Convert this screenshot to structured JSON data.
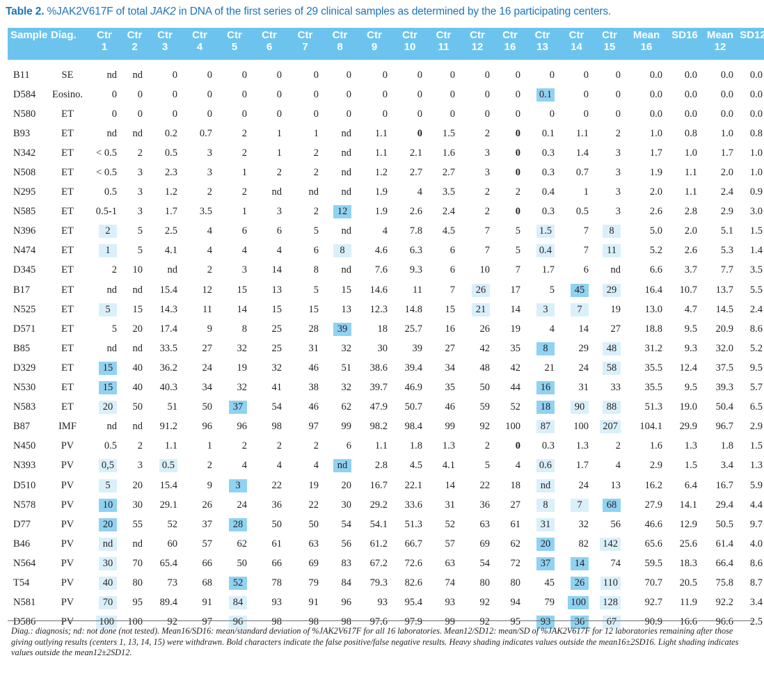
{
  "caption": {
    "label": "Table 2.",
    "text_before": " %JAK2V617F of total ",
    "gene": "JAK2",
    "text_after": " in DNA of the first series of 29 clinical samples as determined by the 16 participating centers."
  },
  "table": {
    "headers": [
      [
        "Sample"
      ],
      [
        "Diag."
      ],
      [
        "Ctr",
        "1"
      ],
      [
        "Ctr",
        "2"
      ],
      [
        "Ctr",
        "3"
      ],
      [
        "Ctr",
        "4"
      ],
      [
        "Ctr",
        "5"
      ],
      [
        "Ctr",
        "6"
      ],
      [
        "Ctr",
        "7"
      ],
      [
        "Ctr",
        "8"
      ],
      [
        "Ctr",
        "9"
      ],
      [
        "Ctr",
        "10"
      ],
      [
        "Ctr",
        "11"
      ],
      [
        "Ctr",
        "12"
      ],
      [
        "Ctr",
        "16"
      ],
      [
        "Ctr",
        "13"
      ],
      [
        "Ctr",
        "14"
      ],
      [
        "Ctr",
        "15"
      ],
      [
        "Mean",
        "16"
      ],
      [
        "SD16"
      ],
      [
        "Mean",
        "12"
      ],
      [
        "SD12"
      ]
    ],
    "rows": [
      [
        "B11",
        "SE",
        "nd",
        "nd",
        "0",
        "0",
        "0",
        "0",
        "0",
        "0",
        "0",
        "0",
        "0",
        "0",
        "0",
        "0",
        "0",
        "0",
        "0.0",
        "0.0",
        "0.0",
        "0.0"
      ],
      [
        "D584",
        "Eosino.",
        "0",
        "0",
        "0",
        "0",
        "0",
        "0",
        "0",
        "0",
        "0",
        "0",
        "0",
        "0",
        "0",
        "0.1",
        "0",
        "0",
        "0.0",
        "0.0",
        "0.0",
        "0.0"
      ],
      [
        "N580",
        "ET",
        "0",
        "0",
        "0",
        "0",
        "0",
        "0",
        "0",
        "0",
        "0",
        "0",
        "0",
        "0",
        "0",
        "0",
        "0",
        "0",
        "0.0",
        "0.0",
        "0.0",
        "0.0"
      ],
      [
        "B93",
        "ET",
        "nd",
        "nd",
        "0.2",
        "0.7",
        "2",
        "1",
        "1",
        "nd",
        "1.1",
        "0",
        "1.5",
        "2",
        "0",
        "0.1",
        "1.1",
        "2",
        "1.0",
        "0.8",
        "1.0",
        "0.8"
      ],
      [
        "N342",
        "ET",
        "< 0.5",
        "2",
        "0.5",
        "3",
        "2",
        "1",
        "2",
        "nd",
        "1.1",
        "2.1",
        "1.6",
        "3",
        "0",
        "0.3",
        "1.4",
        "3",
        "1.7",
        "1.0",
        "1.7",
        "1.0"
      ],
      [
        "N508",
        "ET",
        "< 0.5",
        "3",
        "2.3",
        "3",
        "1",
        "2",
        "2",
        "nd",
        "1.2",
        "2.7",
        "2.7",
        "3",
        "0",
        "0.3",
        "0.7",
        "3",
        "1.9",
        "1.1",
        "2.0",
        "1.0"
      ],
      [
        "N295",
        "ET",
        "0.5",
        "3",
        "1.2",
        "2",
        "2",
        "nd",
        "nd",
        "nd",
        "1.9",
        "4",
        "3.5",
        "2",
        "2",
        "0.4",
        "1",
        "3",
        "2.0",
        "1.1",
        "2.4",
        "0.9"
      ],
      [
        "N585",
        "ET",
        "0.5-1",
        "3",
        "1.7",
        "3.5",
        "1",
        "3",
        "2",
        "12",
        "1.9",
        "2.6",
        "2.4",
        "2",
        "0",
        "0.3",
        "0.5",
        "3",
        "2.6",
        "2.8",
        "2.9",
        "3.0"
      ],
      [
        "N396",
        "ET",
        "2",
        "5",
        "2.5",
        "4",
        "6",
        "6",
        "5",
        "nd",
        "4",
        "7.8",
        "4.5",
        "7",
        "5",
        "1.5",
        "7",
        "8",
        "5.0",
        "2.0",
        "5.1",
        "1.5"
      ],
      [
        "N474",
        "ET",
        "1",
        "5",
        "4.1",
        "4",
        "4",
        "4",
        "6",
        "8",
        "4.6",
        "6.3",
        "6",
        "7",
        "5",
        "0.4",
        "7",
        "11",
        "5.2",
        "2.6",
        "5.3",
        "1.4"
      ],
      [
        "D345",
        "ET",
        "2",
        "10",
        "nd",
        "2",
        "3",
        "14",
        "8",
        "nd",
        "7.6",
        "9.3",
        "6",
        "10",
        "7",
        "1.7",
        "6",
        "nd",
        "6.6",
        "3.7",
        "7.7",
        "3.5"
      ],
      [
        "B17",
        "ET",
        "nd",
        "nd",
        "15.4",
        "12",
        "15",
        "13",
        "5",
        "15",
        "14.6",
        "11",
        "7",
        "26",
        "17",
        "5",
        "45",
        "29",
        "16.4",
        "10.7",
        "13.7",
        "5.5"
      ],
      [
        "N525",
        "ET",
        "5",
        "15",
        "14.3",
        "11",
        "14",
        "15",
        "15",
        "13",
        "12.3",
        "14.8",
        "15",
        "21",
        "14",
        "3",
        "7",
        "19",
        "13.0",
        "4.7",
        "14.5",
        "2.4"
      ],
      [
        "D571",
        "ET",
        "5",
        "20",
        "17.4",
        "9",
        "8",
        "25",
        "28",
        "39",
        "18",
        "25.7",
        "16",
        "26",
        "19",
        "4",
        "14",
        "27",
        "18.8",
        "9.5",
        "20.9",
        "8.6"
      ],
      [
        "B85",
        "ET",
        "nd",
        "nd",
        "33.5",
        "27",
        "32",
        "25",
        "31",
        "32",
        "30",
        "39",
        "27",
        "42",
        "35",
        "8",
        "29",
        "48",
        "31.2",
        "9.3",
        "32.0",
        "5.2"
      ],
      [
        "D329",
        "ET",
        "15",
        "40",
        "36.2",
        "24",
        "19",
        "32",
        "46",
        "51",
        "38.6",
        "39.4",
        "34",
        "48",
        "42",
        "21",
        "24",
        "58",
        "35.5",
        "12.4",
        "37.5",
        "9.5"
      ],
      [
        "N530",
        "ET",
        "15",
        "40",
        "40.3",
        "34",
        "32",
        "41",
        "38",
        "32",
        "39.7",
        "46.9",
        "35",
        "50",
        "44",
        "16",
        "31",
        "33",
        "35.5",
        "9.5",
        "39.3",
        "5.7"
      ],
      [
        "N583",
        "ET",
        "20",
        "50",
        "51",
        "50",
        "37",
        "54",
        "46",
        "62",
        "47.9",
        "50.7",
        "46",
        "59",
        "52",
        "18",
        "90",
        "88",
        "51.3",
        "19.0",
        "50.4",
        "6.5"
      ],
      [
        "B87",
        "IMF",
        "nd",
        "nd",
        "91.2",
        "96",
        "96",
        "98",
        "97",
        "99",
        "98.2",
        "98.4",
        "99",
        "92",
        "100",
        "87",
        "100",
        "207",
        "104.1",
        "29.9",
        "96.7",
        "2.9"
      ],
      [
        "N450",
        "PV",
        "0.5",
        "2",
        "1.1",
        "1",
        "2",
        "2",
        "2",
        "6",
        "1.1",
        "1.8",
        "1.3",
        "2",
        "0",
        "0.3",
        "1.3",
        "2",
        "1.6",
        "1.3",
        "1.8",
        "1.5"
      ],
      [
        "N393",
        "PV",
        "0,5",
        "3",
        "0.5",
        "2",
        "4",
        "4",
        "4",
        "nd",
        "2.8",
        "4.5",
        "4.1",
        "5",
        "4",
        "0.6",
        "1.7",
        "4",
        "2.9",
        "1.5",
        "3.4",
        "1.3"
      ],
      [
        "D510",
        "PV",
        "5",
        "20",
        "15.4",
        "9",
        "3",
        "22",
        "19",
        "20",
        "16.7",
        "22.1",
        "14",
        "22",
        "18",
        "nd",
        "24",
        "13",
        "16.2",
        "6.4",
        "16.7",
        "5.9"
      ],
      [
        "N578",
        "PV",
        "10",
        "30",
        "29.1",
        "26",
        "24",
        "36",
        "22",
        "30",
        "29.2",
        "33.6",
        "31",
        "36",
        "27",
        "8",
        "7",
        "68",
        "27.9",
        "14.1",
        "29.4",
        "4.4"
      ],
      [
        "D77",
        "PV",
        "20",
        "55",
        "52",
        "37",
        "28",
        "50",
        "50",
        "54",
        "54.1",
        "51.3",
        "52",
        "63",
        "61",
        "31",
        "32",
        "56",
        "46.6",
        "12.9",
        "50.5",
        "9.7"
      ],
      [
        "B46",
        "PV",
        "nd",
        "nd",
        "60",
        "57",
        "62",
        "61",
        "63",
        "56",
        "61.2",
        "66.7",
        "57",
        "69",
        "62",
        "20",
        "82",
        "142",
        "65.6",
        "25.6",
        "61.4",
        "4.0"
      ],
      [
        "N564",
        "PV",
        "30",
        "70",
        "65.4",
        "66",
        "50",
        "66",
        "69",
        "83",
        "67.2",
        "72.6",
        "63",
        "54",
        "72",
        "37",
        "14",
        "74",
        "59.5",
        "18.3",
        "66.4",
        "8.6"
      ],
      [
        "T54",
        "PV",
        "40",
        "80",
        "73",
        "68",
        "52",
        "78",
        "79",
        "84",
        "79.3",
        "82.6",
        "74",
        "80",
        "80",
        "45",
        "26",
        "110",
        "70.7",
        "20.5",
        "75.8",
        "8.7"
      ],
      [
        "N581",
        "PV",
        "70",
        "95",
        "89.4",
        "91",
        "84",
        "93",
        "91",
        "96",
        "93",
        "95.4",
        "93",
        "92",
        "94",
        "79",
        "100",
        "128",
        "92.7",
        "11.9",
        "92.2",
        "3.4"
      ],
      [
        "D586",
        "PV",
        "100",
        "100",
        "92",
        "97",
        "96",
        "98",
        "98",
        "98",
        "97.6",
        "97.9",
        "99",
        "92",
        "95",
        "93",
        "36",
        "67",
        "90.9",
        "16.6",
        "96.6",
        "2.5"
      ]
    ]
  },
  "footnote": "Diag.: diagnosis; nd: not done (not tested). Mean16/SD16: mean/standard deviation of %JAK2V617F for all 16 laboratories. Mean12/SD12: mean/SD of %JAK2V617F for 12 laboratories remaining after those giving outlying results (centers 1, 13, 14, 15) were withdrawn. Bold characters indicate the false positive/false negative results. Heavy shading indicates values outside the mean16±2SD16. Light shading indicates values outside the mean12±2SD12."
}
